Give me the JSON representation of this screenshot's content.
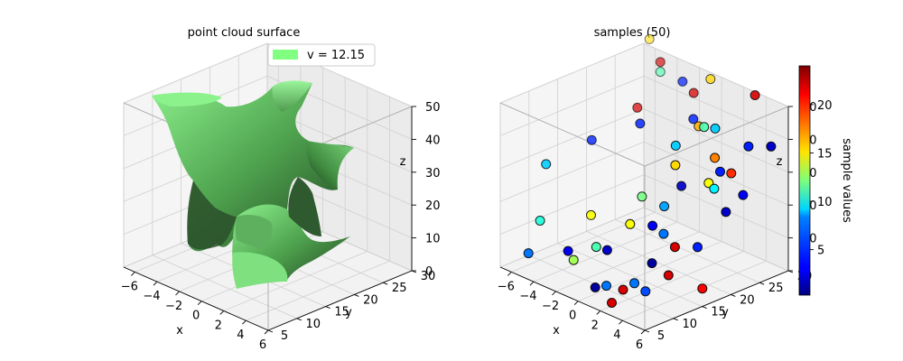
{
  "chart_data": [
    {
      "type": "surface3d",
      "title": "point cloud surface",
      "xlabel": "x",
      "ylabel": "y",
      "zlabel": "z",
      "xlim": [
        -7,
        6
      ],
      "ylim": [
        5,
        30
      ],
      "zlim": [
        0,
        50
      ],
      "xticks": [
        "−6",
        "−4",
        "−2",
        "0",
        "2",
        "4",
        "6"
      ],
      "yticks": [
        "5",
        "10",
        "15",
        "20",
        "25",
        "30"
      ],
      "zticks": [
        "0",
        "10",
        "20",
        "30",
        "40",
        "50"
      ],
      "legend": {
        "label": "v = 12.15",
        "color": "#80ff80",
        "position": "top-right"
      },
      "surface_color": "#80ff80",
      "isovalue": 12.15
    },
    {
      "type": "scatter3d",
      "title": "samples (50)",
      "xlabel": "x",
      "ylabel": "y",
      "zlabel": "z",
      "xlim": [
        -7,
        6
      ],
      "ylim": [
        5,
        30
      ],
      "zlim": [
        0,
        50
      ],
      "xticks": [
        "−6",
        "−4",
        "−2",
        "0",
        "2",
        "4",
        "6"
      ],
      "yticks": [
        "5",
        "10",
        "15",
        "20",
        "25",
        "30"
      ],
      "zticks": [
        "0",
        "10",
        "20",
        "30",
        "40",
        "50"
      ],
      "colormap": "jet",
      "colorbar": {
        "label": "sample values",
        "min": 0.3,
        "max": 24,
        "ticks": [
          "5",
          "10",
          "15",
          "20"
        ],
        "tick_values": [
          5,
          10,
          15,
          20
        ]
      },
      "points": [
        {
          "x": -6.5,
          "y": 30,
          "z": 52,
          "v": 16
        },
        {
          "x": -5,
          "y": 29,
          "z": 45,
          "v": 11
        },
        {
          "x": -5,
          "y": 29,
          "z": 48,
          "v": 22
        },
        {
          "x": -3,
          "y": 29,
          "z": 45,
          "v": 4
        },
        {
          "x": -1,
          "y": 30,
          "z": 48,
          "v": 16
        },
        {
          "x": -2,
          "y": 29,
          "z": 43,
          "v": 22
        },
        {
          "x": 3,
          "y": 30,
          "z": 49,
          "v": 22
        },
        {
          "x": -5,
          "y": 25,
          "z": 37,
          "v": 22
        },
        {
          "x": -3.2,
          "y": 22,
          "z": 37,
          "v": 4
        },
        {
          "x": -1,
          "y": 27,
          "z": 38,
          "v": 4
        },
        {
          "x": 0,
          "y": 26,
          "z": 38,
          "v": 17
        },
        {
          "x": 1,
          "y": 25,
          "z": 40,
          "v": 11
        },
        {
          "x": 2,
          "y": 25,
          "z": 41,
          "v": 8
        },
        {
          "x": 0,
          "y": 22,
          "z": 35,
          "v": 8
        },
        {
          "x": 1,
          "y": 20,
          "z": 32,
          "v": 16
        },
        {
          "x": 3,
          "y": 23,
          "z": 35,
          "v": 18
        },
        {
          "x": 4,
          "y": 22,
          "z": 33,
          "v": 4
        },
        {
          "x": 5,
          "y": 25,
          "z": 40,
          "v": 4
        },
        {
          "x": 5,
          "y": 22,
          "z": 34,
          "v": 20
        },
        {
          "x": 4,
          "y": 20,
          "z": 31,
          "v": 15
        },
        {
          "x": 4.5,
          "y": 20,
          "z": 30,
          "v": 9
        },
        {
          "x": 6,
          "y": 27,
          "z": 40,
          "v": 2
        },
        {
          "x": -6.5,
          "y": 12,
          "z": 27,
          "v": 8
        },
        {
          "x": -6,
          "y": 19,
          "z": 30,
          "v": 4
        },
        {
          "x": -6,
          "y": 10,
          "z": 12,
          "v": 10
        },
        {
          "x": -4,
          "y": 15,
          "z": 13,
          "v": 15
        },
        {
          "x": -2,
          "y": 20,
          "z": 18,
          "v": 12
        },
        {
          "x": -1,
          "y": 16,
          "z": 14,
          "v": 15
        },
        {
          "x": 0,
          "y": 20,
          "z": 18,
          "v": 7
        },
        {
          "x": 0,
          "y": 23,
          "z": 22,
          "v": 2
        },
        {
          "x": 0.5,
          "y": 17,
          "z": 15,
          "v": 3
        },
        {
          "x": 1.5,
          "y": 17,
          "z": 14,
          "v": 6
        },
        {
          "x": 4,
          "y": 23,
          "z": 20,
          "v": 2
        },
        {
          "x": 4,
          "y": 26,
          "z": 23,
          "v": 3
        },
        {
          "x": 2,
          "y": 18,
          "z": 10,
          "v": 22
        },
        {
          "x": 3,
          "y": 20,
          "z": 10,
          "v": 4
        },
        {
          "x": -4,
          "y": 11,
          "z": 5,
          "v": 3
        },
        {
          "x": -3.5,
          "y": 11,
          "z": 3,
          "v": 13
        },
        {
          "x": -2.5,
          "y": 13,
          "z": 7,
          "v": 11
        },
        {
          "x": -1,
          "y": 12,
          "z": 9,
          "v": 2
        },
        {
          "x": 1,
          "y": 8,
          "z": 4,
          "v": 6
        },
        {
          "x": 2.5,
          "y": 8,
          "z": 5,
          "v": 22
        },
        {
          "x": 3,
          "y": 9,
          "z": 7,
          "v": 6
        },
        {
          "x": 0,
          "y": 8,
          "z": 2,
          "v": 1
        },
        {
          "x": 2,
          "y": 7,
          "z": 1,
          "v": 22
        },
        {
          "x": 4,
          "y": 9,
          "z": 6,
          "v": 5
        },
        {
          "x": -5.5,
          "y": 7,
          "z": 5,
          "v": 6
        },
        {
          "x": 5.5,
          "y": 16,
          "z": 4,
          "v": 21
        },
        {
          "x": 4,
          "y": 13,
          "z": 8,
          "v": 22
        },
        {
          "x": 2,
          "y": 14,
          "z": 8,
          "v": 1
        }
      ]
    }
  ]
}
